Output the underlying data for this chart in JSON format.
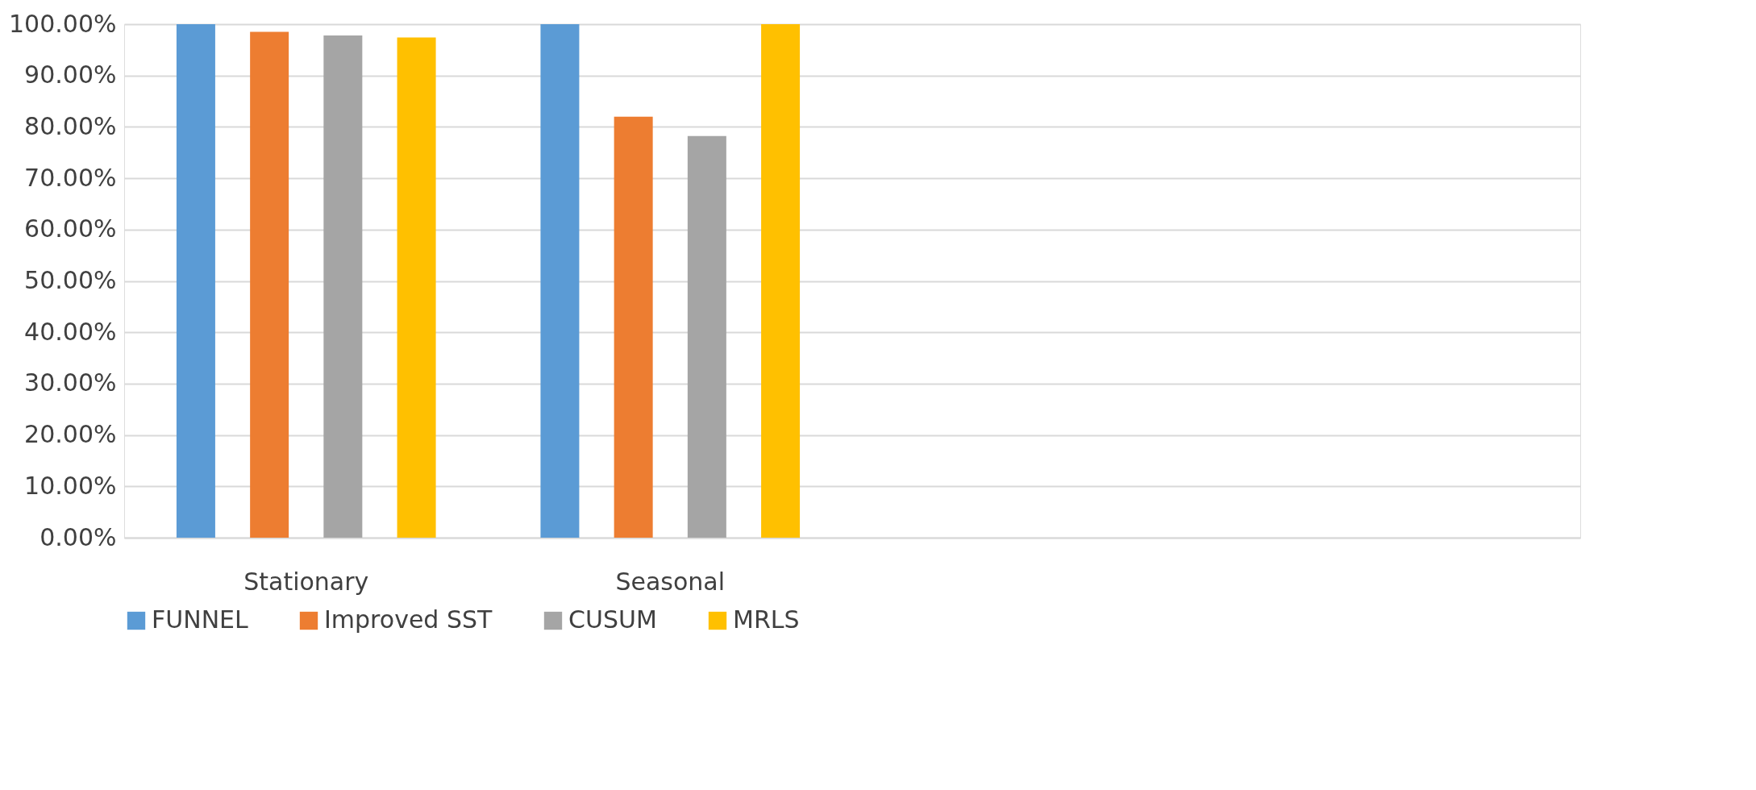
{
  "chart_data": {
    "type": "bar",
    "categories": [
      "Stationary",
      "Seasonal",
      null,
      null
    ],
    "series": [
      {
        "name": "FUNNEL",
        "color": "#5b9bd5",
        "values": [
          100,
          100,
          null,
          null
        ]
      },
      {
        "name": "Improved SST",
        "color": "#ed7d31",
        "values": [
          98.5,
          82.0,
          null,
          null
        ]
      },
      {
        "name": "CUSUM",
        "color": "#a5a5a5",
        "values": [
          97.8,
          78.2,
          null,
          null
        ]
      },
      {
        "name": "MRLS",
        "color": "#ffc000",
        "values": [
          97.4,
          100,
          null,
          null
        ]
      }
    ],
    "ylim": [
      0,
      100
    ],
    "yticks": [
      {
        "value": 0,
        "label": "0.00%"
      },
      {
        "value": 10,
        "label": "10.00%"
      },
      {
        "value": 20,
        "label": "20.00%"
      },
      {
        "value": 30,
        "label": "30.00%"
      },
      {
        "value": 40,
        "label": "40.00%"
      },
      {
        "value": 50,
        "label": "50.00%"
      },
      {
        "value": 60,
        "label": "60.00%"
      },
      {
        "value": 70,
        "label": "70.00%"
      },
      {
        "value": 80,
        "label": "80.00%"
      },
      {
        "value": 90,
        "label": "90.00%"
      },
      {
        "value": 100,
        "label": "100.00%"
      }
    ],
    "grid": "y",
    "legend": "bottom"
  }
}
